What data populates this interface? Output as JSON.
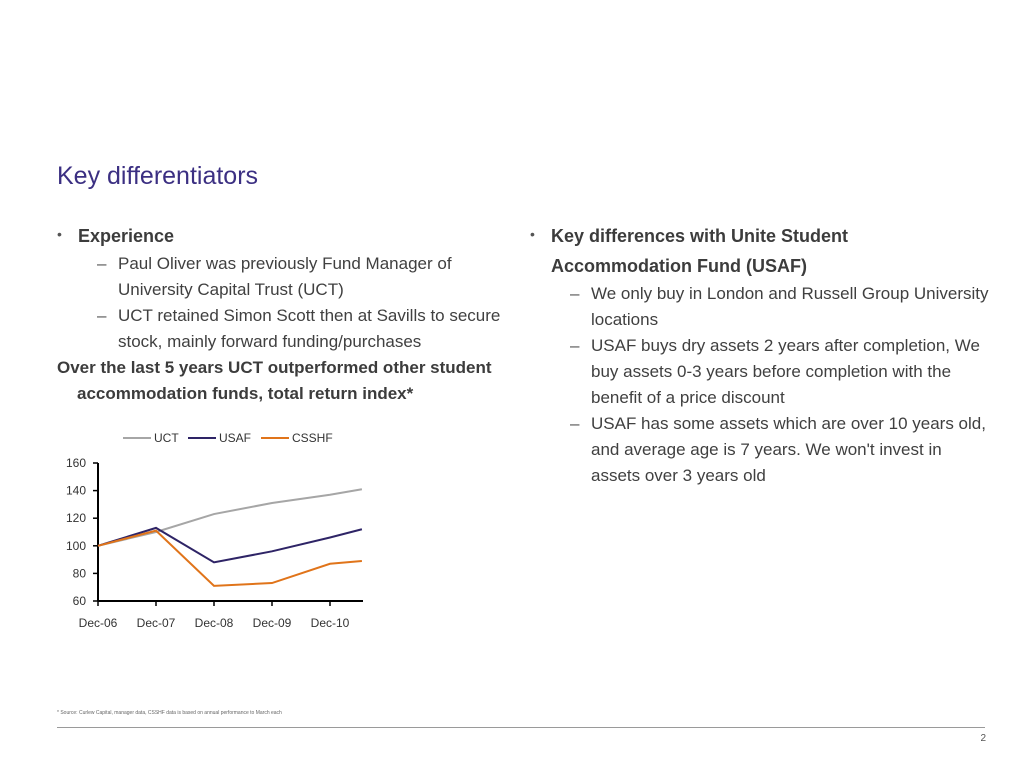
{
  "slide": {
    "title": "Key differentiators",
    "page_number": "2",
    "footnote": "* Source: Curlew Capital, manager data, CSSHF data is based on annual performance to March each"
  },
  "left": {
    "heading": "Experience",
    "items": [
      "Paul Oliver was previously Fund Manager of University Capital Trust (UCT)",
      "UCT retained Simon Scott then at Savills to secure stock, mainly forward funding/purchases"
    ],
    "highlight": "Over the last 5 years UCT outperformed other student accommodation funds, total return index*"
  },
  "right": {
    "heading": "Key differences with Unite Student Accommodation Fund (USAF)",
    "items": [
      "We only buy in London and Russell Group University locations",
      "USAF buys dry assets 2 years after completion, We buy assets 0-3 years before completion with the benefit of a price discount",
      "USAF has some assets which are over 10 years old, and average age is 7 years.  We won't invest in assets over 3 years old"
    ]
  },
  "chart_data": {
    "type": "line",
    "title": "",
    "xlabel": "",
    "ylabel": "",
    "categories": [
      "Dec-06",
      "Dec-07",
      "Dec-08",
      "Dec-09",
      "Dec-10"
    ],
    "x": [
      0,
      1,
      2,
      3,
      4,
      4.55
    ],
    "ylim": [
      60,
      160
    ],
    "yticks": [
      60,
      80,
      100,
      120,
      140,
      160
    ],
    "legend_position": "top",
    "series": [
      {
        "name": "UCT",
        "color": "#a6a6a6",
        "values": [
          100,
          110,
          123,
          131,
          137,
          141
        ]
      },
      {
        "name": "USAF",
        "color": "#2e2466",
        "values": [
          100,
          113,
          88,
          96,
          106,
          112
        ]
      },
      {
        "name": "CSSHF",
        "color": "#e0741a",
        "values": [
          100,
          111,
          71,
          73,
          87,
          89
        ]
      }
    ]
  }
}
